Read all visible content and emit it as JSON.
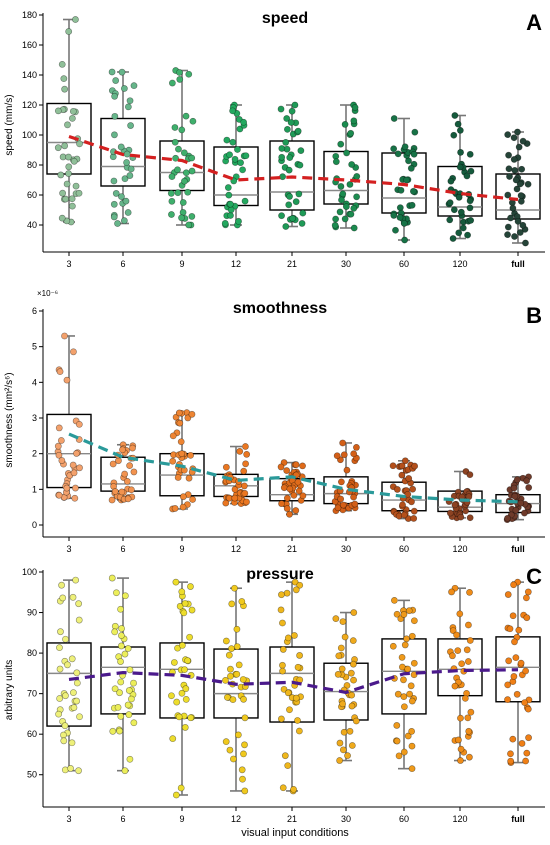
{
  "figure": {
    "xlabel": "visual input conditions",
    "categories": [
      "3",
      "6",
      "9",
      "12",
      "21",
      "30",
      "60",
      "120",
      "full"
    ]
  },
  "chart_data": [
    {
      "type": "box",
      "panel_letter": "A",
      "title": "speed",
      "ylabel": "speed (mm/s)",
      "ylim": [
        30,
        180
      ],
      "yticks": [
        40,
        60,
        80,
        100,
        120,
        140,
        160,
        180
      ],
      "y_exponent": "",
      "categories": [
        "3",
        "6",
        "9",
        "12",
        "21",
        "30",
        "60",
        "120",
        "full"
      ],
      "boxes": [
        {
          "min": 42,
          "q1": 74,
          "median": 95,
          "q3": 121,
          "max": 177
        },
        {
          "min": 41,
          "q1": 66,
          "median": 79,
          "q3": 111,
          "max": 142
        },
        {
          "min": 40,
          "q1": 63,
          "median": 75,
          "q3": 96,
          "max": 143
        },
        {
          "min": 40,
          "q1": 53,
          "median": 60,
          "q3": 92,
          "max": 120
        },
        {
          "min": 39,
          "q1": 50,
          "median": 62,
          "q3": 96,
          "max": 120
        },
        {
          "min": 38,
          "q1": 54,
          "median": 63,
          "q3": 89,
          "max": 120
        },
        {
          "min": 30,
          "q1": 48,
          "median": 58,
          "q3": 88,
          "max": 111
        },
        {
          "min": 31,
          "q1": 46,
          "median": 52,
          "q3": 79,
          "max": 113
        },
        {
          "min": 28,
          "q1": 44,
          "median": 50,
          "q3": 74,
          "max": 102
        }
      ],
      "mean_line": [
        99,
        87,
        83,
        70,
        72,
        70,
        67,
        61,
        57
      ],
      "mean_line_color": "#d42020",
      "point_colors": [
        "#8fbf98",
        "#66b58a",
        "#3faf6c",
        "#23a85f",
        "#1f9a57",
        "#1b8b4f",
        "#177246",
        "#155a3c",
        "#254438"
      ]
    },
    {
      "type": "box",
      "panel_letter": "B",
      "title": "smoothness",
      "ylabel": "smoothness (mm²/s⁶)",
      "ylim": [
        0,
        6
      ],
      "yticks": [
        0,
        1,
        2,
        3,
        4,
        5,
        6
      ],
      "y_exponent": "×10⁻⁶",
      "categories": [
        "3",
        "6",
        "9",
        "12",
        "21",
        "30",
        "60",
        "120",
        "full"
      ],
      "boxes": [
        {
          "min": 0.75,
          "q1": 1.05,
          "median": 2.0,
          "q3": 3.1,
          "max": 5.3
        },
        {
          "min": 0.7,
          "q1": 0.95,
          "median": 1.15,
          "q3": 1.9,
          "max": 2.25
        },
        {
          "min": 0.45,
          "q1": 0.82,
          "median": 1.4,
          "q3": 2.0,
          "max": 3.15
        },
        {
          "min": 0.6,
          "q1": 0.8,
          "median": 1.1,
          "q3": 1.42,
          "max": 2.2
        },
        {
          "min": 0.3,
          "q1": 0.68,
          "median": 0.85,
          "q3": 1.3,
          "max": 1.75
        },
        {
          "min": 0.4,
          "q1": 0.6,
          "median": 0.88,
          "q3": 1.35,
          "max": 2.3
        },
        {
          "min": 0.18,
          "q1": 0.4,
          "median": 0.7,
          "q3": 1.2,
          "max": 1.8
        },
        {
          "min": 0.2,
          "q1": 0.38,
          "median": 0.5,
          "q3": 0.95,
          "max": 1.5
        },
        {
          "min": 0.15,
          "q1": 0.35,
          "median": 0.6,
          "q3": 0.85,
          "max": 1.35
        }
      ],
      "mean_line": [
        2.55,
        1.9,
        1.65,
        1.25,
        1.35,
        1.0,
        0.8,
        0.7,
        0.65
      ],
      "mean_line_color": "#2a9a9a",
      "point_colors": [
        "#f3a16c",
        "#f2934f",
        "#ee8533",
        "#ea7721",
        "#df6b1a",
        "#d35f17",
        "#b4501b",
        "#8d4322",
        "#6e3a2a"
      ]
    },
    {
      "type": "box",
      "panel_letter": "C",
      "title": "pressure",
      "ylabel": "arbitrary units",
      "ylim": [
        45,
        100
      ],
      "yticks": [
        50,
        60,
        70,
        80,
        90,
        100
      ],
      "y_exponent": "",
      "categories": [
        "3",
        "6",
        "9",
        "12",
        "21",
        "30",
        "60",
        "120",
        "full"
      ],
      "boxes": [
        {
          "min": 51,
          "q1": 62,
          "median": 75,
          "q3": 82.5,
          "max": 98
        },
        {
          "min": 51,
          "q1": 65,
          "median": 76.5,
          "q3": 81.5,
          "max": 98.5
        },
        {
          "min": 45,
          "q1": 64,
          "median": 76,
          "q3": 82.5,
          "max": 97.5
        },
        {
          "min": 46,
          "q1": 64,
          "median": 70,
          "q3": 81,
          "max": 96
        },
        {
          "min": 46,
          "q1": 63,
          "median": 75,
          "q3": 81.5,
          "max": 97.5
        },
        {
          "min": 53.5,
          "q1": 63.5,
          "median": 70.5,
          "q3": 77.5,
          "max": 90
        },
        {
          "min": 51.5,
          "q1": 65,
          "median": 75.5,
          "q3": 83.5,
          "max": 93
        },
        {
          "min": 53.5,
          "q1": 69.5,
          "median": 76,
          "q3": 83.5,
          "max": 96
        },
        {
          "min": 53,
          "q1": 68,
          "median": 76.5,
          "q3": 84,
          "max": 97.5
        }
      ],
      "mean_line": [
        73.5,
        75.2,
        74.5,
        72.3,
        72.8,
        70.3,
        74.9,
        75.7,
        75.9
      ],
      "mean_line_color": "#4b1a8c",
      "point_colors": [
        "#eef07a",
        "#ecee5a",
        "#eddd2c",
        "#f0c91e",
        "#efb71c",
        "#efaa1c",
        "#ef9a1a",
        "#ef8c18",
        "#ef7f16"
      ]
    }
  ]
}
